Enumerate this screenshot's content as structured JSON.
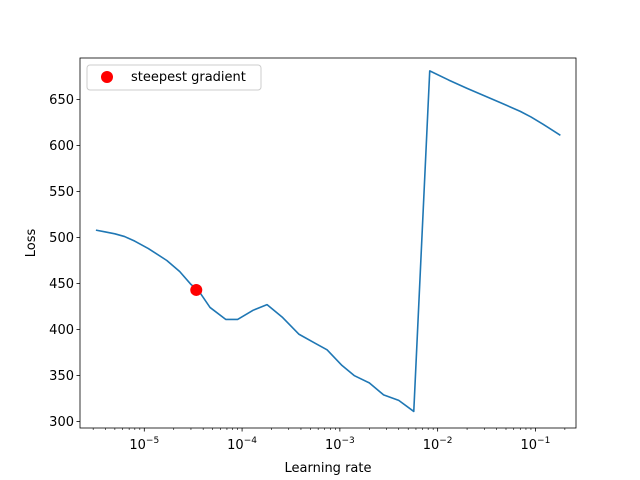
{
  "chart_data": {
    "type": "line",
    "xscale": "log",
    "xlabel": "Learning rate",
    "ylabel": "Loss",
    "title": "",
    "xlim": [
      2.2e-06,
      0.26
    ],
    "ylim": [
      293,
      695
    ],
    "x_ticks": [
      {
        "value": 1e-05,
        "base": "10",
        "exp": "−5"
      },
      {
        "value": 0.0001,
        "base": "10",
        "exp": "−4"
      },
      {
        "value": 0.001,
        "base": "10",
        "exp": "−3"
      },
      {
        "value": 0.01,
        "base": "10",
        "exp": "−2"
      },
      {
        "value": 0.1,
        "base": "10",
        "exp": "−1"
      }
    ],
    "y_ticks": [
      300,
      350,
      400,
      450,
      500,
      550,
      600,
      650
    ],
    "series": [
      {
        "name": "loss",
        "color": "#1f77b4",
        "x": [
          3.2e-06,
          4e-06,
          5e-06,
          6.3e-06,
          8e-06,
          1.1e-05,
          1.7e-05,
          2.3e-05,
          3e-05,
          3.6e-05,
          4.7e-05,
          6.8e-05,
          9e-05,
          0.00013,
          0.00018,
          0.00026,
          0.00038,
          0.00056,
          0.00074,
          0.00105,
          0.0014,
          0.002,
          0.0028,
          0.004,
          0.0057,
          0.0083,
          0.013,
          0.02,
          0.03,
          0.045,
          0.07,
          0.09,
          0.12,
          0.18
        ],
        "y": [
          508,
          506,
          504,
          501,
          496,
          488,
          475,
          463,
          449,
          442,
          424,
          411,
          411,
          421,
          427,
          413,
          395,
          385,
          378,
          361,
          350,
          342,
          329,
          323,
          311,
          681,
          671,
          662,
          654,
          646,
          637,
          631,
          623,
          611
        ]
      }
    ],
    "annotations": [
      {
        "name": "steepest gradient",
        "x": 3.4e-05,
        "y": 443,
        "color": "#ff0000",
        "marker": "circle"
      }
    ],
    "legend": {
      "entries": [
        "steepest gradient"
      ],
      "position": "top-left"
    }
  }
}
